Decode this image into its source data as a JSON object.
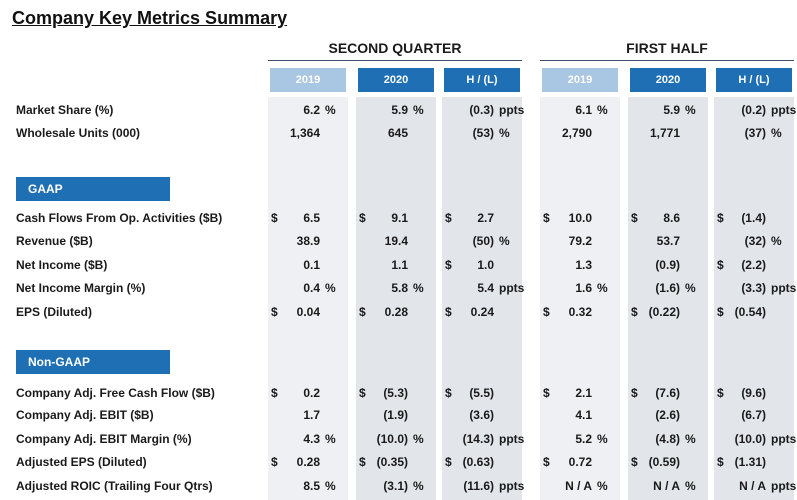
{
  "title": "Company Key Metrics Summary",
  "groups": [
    {
      "label": "SECOND QUARTER"
    },
    {
      "label": "FIRST HALF"
    }
  ],
  "columns": [
    {
      "label": "2019",
      "style": "light"
    },
    {
      "label": "2020",
      "style": "dark"
    },
    {
      "label": "H / (L)",
      "style": "dark"
    },
    {
      "label": "2019",
      "style": "light"
    },
    {
      "label": "2020",
      "style": "dark"
    },
    {
      "label": "H / (L)",
      "style": "dark"
    }
  ],
  "sections": [
    {
      "label": "GAAP"
    },
    {
      "label": "Non-GAAP"
    }
  ],
  "rows": [
    {
      "label": "Market Share (%)",
      "cells": [
        {
          "v": "6.2",
          "u": "%"
        },
        {
          "v": "5.9",
          "u": "%"
        },
        {
          "v": "(0.3)",
          "u": "ppts"
        },
        {
          "v": "6.1",
          "u": "%"
        },
        {
          "v": "5.9",
          "u": "%"
        },
        {
          "v": "(0.2)",
          "u": "ppts"
        }
      ]
    },
    {
      "label": "Wholesale Units (000)",
      "cells": [
        {
          "v": "1,364"
        },
        {
          "v": "645"
        },
        {
          "v": "(53)",
          "u": "%"
        },
        {
          "v": "2,790"
        },
        {
          "v": "1,771"
        },
        {
          "v": "(37)",
          "u": "%"
        }
      ]
    },
    {
      "label": "Cash Flows From Op. Activities ($B)",
      "cells": [
        {
          "c": "$",
          "v": "6.5"
        },
        {
          "c": "$",
          "v": "9.1"
        },
        {
          "c": "$",
          "v": "2.7"
        },
        {
          "c": "$",
          "v": "10.0"
        },
        {
          "c": "$",
          "v": "8.6"
        },
        {
          "c": "$",
          "v": "(1.4)"
        }
      ]
    },
    {
      "label": "Revenue ($B)",
      "cells": [
        {
          "v": "38.9"
        },
        {
          "v": "19.4"
        },
        {
          "v": "(50)",
          "u": "%"
        },
        {
          "v": "79.2"
        },
        {
          "v": "53.7"
        },
        {
          "v": "(32)",
          "u": "%"
        }
      ]
    },
    {
      "label": "Net Income ($B)",
      "cells": [
        {
          "v": "0.1"
        },
        {
          "v": "1.1"
        },
        {
          "c": "$",
          "v": "1.0"
        },
        {
          "v": "1.3"
        },
        {
          "v": "(0.9)"
        },
        {
          "c": "$",
          "v": "(2.2)"
        }
      ]
    },
    {
      "label": "Net Income Margin (%)",
      "cells": [
        {
          "v": "0.4",
          "u": "%"
        },
        {
          "v": "5.8",
          "u": "%"
        },
        {
          "v": "5.4",
          "u": "ppts"
        },
        {
          "v": "1.6",
          "u": "%"
        },
        {
          "v": "(1.6)",
          "u": "%"
        },
        {
          "v": "(3.3)",
          "u": "ppts"
        }
      ]
    },
    {
      "label": "EPS (Diluted)",
      "cells": [
        {
          "c": "$",
          "v": "0.04"
        },
        {
          "c": "$",
          "v": "0.28"
        },
        {
          "c": "$",
          "v": "0.24"
        },
        {
          "c": "$",
          "v": "0.32"
        },
        {
          "c": "$",
          "v": "(0.22)"
        },
        {
          "c": "$",
          "v": "(0.54)"
        }
      ]
    },
    {
      "label": "Company Adj. Free Cash Flow ($B)",
      "cells": [
        {
          "c": "$",
          "v": "0.2"
        },
        {
          "c": "$",
          "v": "(5.3)"
        },
        {
          "c": "$",
          "v": "(5.5)"
        },
        {
          "c": "$",
          "v": "2.1"
        },
        {
          "c": "$",
          "v": "(7.6)"
        },
        {
          "c": "$",
          "v": "(9.6)"
        }
      ]
    },
    {
      "label": "Company Adj. EBIT ($B)",
      "cells": [
        {
          "v": "1.7"
        },
        {
          "v": "(1.9)"
        },
        {
          "v": "(3.6)"
        },
        {
          "v": "4.1"
        },
        {
          "v": "(2.6)"
        },
        {
          "v": "(6.7)"
        }
      ]
    },
    {
      "label": "Company Adj. EBIT Margin (%)",
      "cells": [
        {
          "v": "4.3",
          "u": "%"
        },
        {
          "v": "(10.0)",
          "u": "%"
        },
        {
          "v": "(14.3)",
          "u": "ppts"
        },
        {
          "v": "5.2",
          "u": "%"
        },
        {
          "v": "(4.8)",
          "u": "%"
        },
        {
          "v": "(10.0)",
          "u": "ppts"
        }
      ]
    },
    {
      "label": "Adjusted EPS (Diluted)",
      "cells": [
        {
          "c": "$",
          "v": "0.28"
        },
        {
          "c": "$",
          "v": "(0.35)"
        },
        {
          "c": "$",
          "v": "(0.63)"
        },
        {
          "c": "$",
          "v": "0.72"
        },
        {
          "c": "$",
          "v": "(0.59)"
        },
        {
          "c": "$",
          "v": "(1.31)"
        }
      ]
    },
    {
      "label": "Adjusted ROIC (Trailing Four Qtrs)",
      "cells": [
        {
          "v": "8.5",
          "u": "%"
        },
        {
          "v": "(3.1)",
          "u": "%"
        },
        {
          "v": "(11.6)",
          "u": "ppts"
        },
        {
          "v": "N / A",
          "u": "%"
        },
        {
          "v": "N / A",
          "u": "%"
        },
        {
          "v": "N / A",
          "u": "ppts"
        }
      ]
    }
  ],
  "colors": {
    "header_dark": "#1f6fb5",
    "header_light": "#a9c6e2",
    "band_light": "#eef0f3",
    "band_dark": "#e2e5ea"
  }
}
